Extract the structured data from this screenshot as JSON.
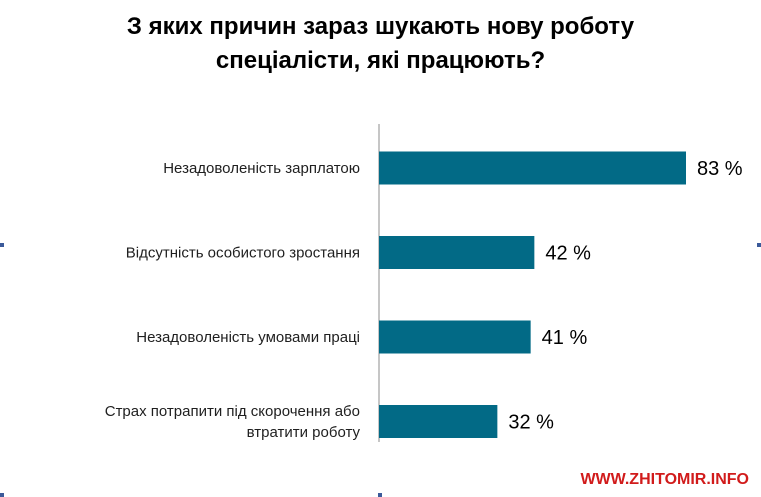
{
  "title_lines": [
    "З яких причин зараз шукають нову роботу",
    "спеціалісти, які працюють?"
  ],
  "watermark": "WWW.ZHITOMIR.INFO",
  "colors": {
    "bar": "#026a86",
    "axis": "#8c8c8c",
    "marks": "#3b5a9a",
    "watermark": "#d11b1b"
  },
  "chart_data": {
    "type": "bar",
    "orientation": "horizontal",
    "title": "З яких причин зараз шукають нову роботу спеціалісти, які працюють?",
    "categories": [
      [
        "Незадоволеність зарплатою"
      ],
      [
        "Відсутність особистого зростання"
      ],
      [
        "Незадоволеність умовами праці"
      ],
      [
        "Страх потрапити під скорочення або",
        "втратити роботу"
      ]
    ],
    "values": [
      83,
      42,
      41,
      32
    ],
    "value_labels": [
      "83 %",
      "42 %",
      "41 %",
      "32 %"
    ],
    "unit": "%",
    "xlim": [
      0,
      83
    ],
    "grid": false,
    "legend": "none"
  }
}
